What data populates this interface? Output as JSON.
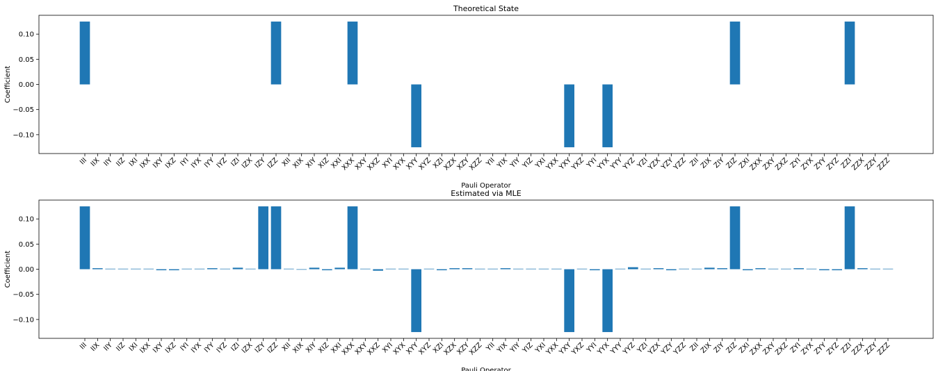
{
  "chart_data": [
    {
      "type": "bar",
      "title": "Theoretical State",
      "x_label": "Pauli Operator",
      "y_label": "Coefficient",
      "color": "#1f77b4",
      "categories": [
        "III",
        "IIX",
        "IIY",
        "IIZ",
        "IXI",
        "IXX",
        "IXY",
        "IXZ",
        "IYI",
        "IYX",
        "IYY",
        "IYZ",
        "IZI",
        "IZX",
        "IZY",
        "IZZ",
        "XII",
        "XIX",
        "XIY",
        "XIZ",
        "XXI",
        "XXX",
        "XXY",
        "XXZ",
        "XYI",
        "XYX",
        "XYY",
        "XYZ",
        "XZI",
        "XZX",
        "XZY",
        "XZZ",
        "YII",
        "YIX",
        "YIY",
        "YIZ",
        "YXI",
        "YXX",
        "YXY",
        "YXZ",
        "YYI",
        "YYX",
        "YYY",
        "YYZ",
        "YZI",
        "YZX",
        "YZY",
        "YZZ",
        "ZII",
        "ZIX",
        "ZIY",
        "ZIZ",
        "ZXI",
        "ZXX",
        "ZXY",
        "ZXZ",
        "ZYI",
        "ZYX",
        "ZYY",
        "ZYZ",
        "ZZI",
        "ZZX",
        "ZZY",
        "ZZZ"
      ],
      "values": [
        0.125,
        0,
        0,
        0,
        0,
        0,
        0,
        0,
        0,
        0,
        0,
        0,
        0,
        0,
        0,
        0.125,
        0,
        0,
        0,
        0,
        0,
        0.125,
        0,
        0,
        0,
        0,
        -0.125,
        0,
        0,
        0,
        0,
        0,
        0,
        0,
        0,
        0,
        0,
        0,
        -0.125,
        0,
        0,
        -0.125,
        0,
        0,
        0,
        0,
        0,
        0,
        0,
        0,
        0,
        0.125,
        0,
        0,
        0,
        0,
        0,
        0,
        0,
        0,
        0.125,
        0,
        0,
        0
      ],
      "ylim": [
        -0.1375,
        0.1375
      ],
      "yticks": [
        {
          "value": -0.1,
          "label": "−0.10"
        },
        {
          "value": -0.05,
          "label": "−0.05"
        },
        {
          "value": 0,
          "label": "0.00"
        },
        {
          "value": 0.05,
          "label": "0.05"
        },
        {
          "value": 0.1,
          "label": "0.10"
        }
      ]
    },
    {
      "type": "bar",
      "title": "Estimated via MLE",
      "x_label": "Pauli Operator",
      "y_label": "Coefficient",
      "color": "#1f77b4",
      "categories": [
        "III",
        "IIX",
        "IIY",
        "IIZ",
        "IXI",
        "IXX",
        "IXY",
        "IXZ",
        "IYI",
        "IYX",
        "IYY",
        "IYZ",
        "IZI",
        "IZX",
        "IZY",
        "IZZ",
        "XII",
        "XIX",
        "XIY",
        "XIZ",
        "XXI",
        "XXX",
        "XXY",
        "XXZ",
        "XYI",
        "XYX",
        "XYY",
        "XYZ",
        "XZI",
        "XZX",
        "XZY",
        "XZZ",
        "YII",
        "YIX",
        "YIY",
        "YIZ",
        "YXI",
        "YXX",
        "YXY",
        "YXZ",
        "YYI",
        "YYX",
        "YYY",
        "YYZ",
        "YZI",
        "YZX",
        "YZY",
        "YZZ",
        "ZII",
        "ZIX",
        "ZIY",
        "ZIZ",
        "ZXI",
        "ZXX",
        "ZXY",
        "ZXZ",
        "ZYI",
        "ZYX",
        "ZYY",
        "ZYZ",
        "ZZI",
        "ZZX",
        "ZZY",
        "ZZZ"
      ],
      "values": [
        0.125,
        0.002,
        0.001,
        0.001,
        0.001,
        0.001,
        -0.002,
        -0.002,
        0.001,
        0.001,
        0.002,
        0.001,
        0.003,
        0.001,
        0.125,
        0.125,
        0.001,
        -0.001,
        0.003,
        -0.002,
        0.003,
        0.125,
        0.001,
        -0.003,
        0.001,
        0.001,
        -0.125,
        0.001,
        -0.002,
        0.002,
        0.002,
        0.001,
        0.001,
        0.002,
        0.001,
        0.001,
        0.001,
        0.001,
        -0.125,
        0.001,
        -0.002,
        -0.125,
        0.001,
        0.004,
        0.001,
        0.002,
        -0.002,
        0.001,
        0.001,
        0.003,
        0.002,
        0.125,
        -0.002,
        0.002,
        0.001,
        0.001,
        0.002,
        0.001,
        -0.002,
        -0.002,
        0.125,
        0.002,
        0.001,
        0.001
      ],
      "ylim": [
        -0.1375,
        0.1375
      ],
      "yticks": [
        {
          "value": -0.1,
          "label": "−0.10"
        },
        {
          "value": -0.05,
          "label": "−0.05"
        },
        {
          "value": 0,
          "label": "0.00"
        },
        {
          "value": 0.05,
          "label": "0.05"
        },
        {
          "value": 0.1,
          "label": "0.10"
        }
      ]
    }
  ]
}
